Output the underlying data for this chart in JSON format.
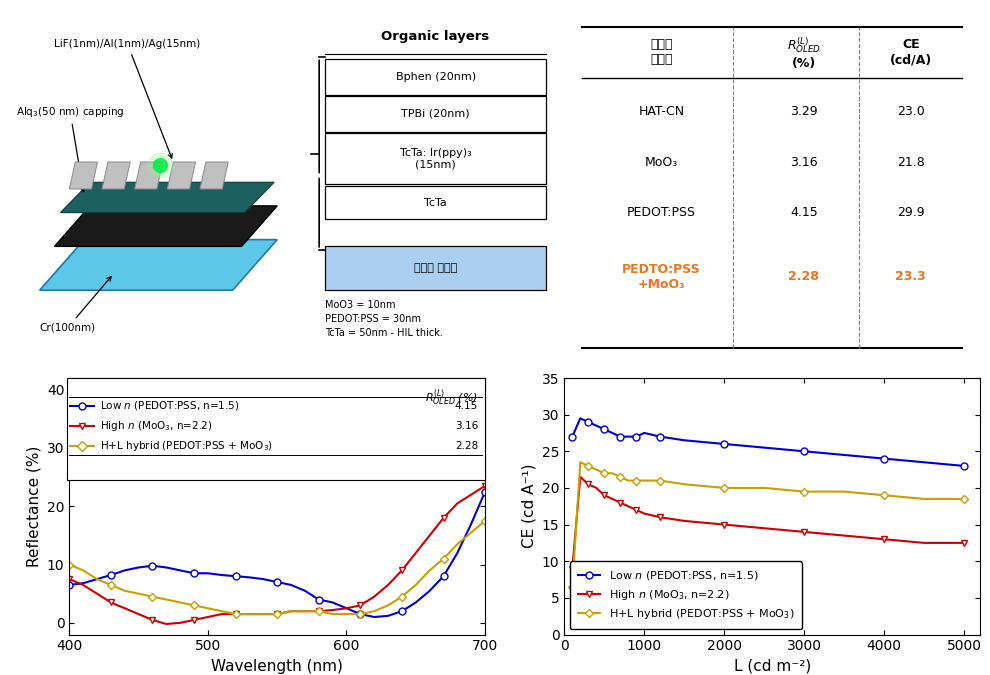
{
  "table": {
    "headers": [
      "반사율\n조절층",
      "R_OLED^(L)\n(%)",
      "CE\n(cd/A)"
    ],
    "rows": [
      [
        "HAT-CN",
        "3.29",
        "23.0"
      ],
      [
        "MoO₃",
        "3.16",
        "21.8"
      ],
      [
        "PEDOT:PSS",
        "4.15",
        "29.9"
      ],
      [
        "PEDTO:PSS\n+MoO₃",
        "2.28",
        "23.3"
      ]
    ],
    "last_row_color": "#E87722"
  },
  "organic_layers": {
    "layers": [
      "Bphen (20nm)",
      "TPBi (20nm)",
      "TcTa: Ir(ppy)₃\n(15nm)",
      "TcTa",
      "반사율 조절층"
    ],
    "note": "MoO3 = 10nm\nPEDOT:PSS = 30nm\nTcTa = 50nm - HIL thick."
  },
  "device_labels": {
    "top": "LiF(1nm)/Al(1nm)/Ag(15nm)",
    "bottom_left": "Alq₃(50 nm) capping",
    "bottom_right": "Cr(100nm)"
  },
  "reflectance": {
    "wavelength": [
      400,
      410,
      420,
      430,
      440,
      450,
      460,
      470,
      480,
      490,
      500,
      510,
      520,
      530,
      540,
      550,
      560,
      570,
      580,
      590,
      600,
      610,
      620,
      630,
      640,
      650,
      660,
      670,
      680,
      690,
      700
    ],
    "low_n": [
      6.5,
      6.8,
      7.5,
      8.2,
      9.0,
      9.5,
      9.8,
      9.5,
      9.0,
      8.5,
      8.5,
      8.2,
      8.0,
      7.8,
      7.5,
      7.0,
      6.5,
      5.5,
      4.0,
      3.5,
      2.5,
      1.5,
      1.0,
      1.2,
      2.0,
      3.5,
      5.5,
      8.0,
      12.0,
      17.0,
      22.5
    ],
    "high_n": [
      7.5,
      6.5,
      5.0,
      3.5,
      2.5,
      1.5,
      0.5,
      -0.2,
      0.0,
      0.5,
      1.0,
      1.5,
      1.5,
      1.5,
      1.5,
      1.5,
      2.0,
      2.0,
      2.0,
      2.2,
      2.5,
      3.0,
      4.5,
      6.5,
      9.0,
      12.0,
      15.0,
      18.0,
      20.5,
      22.0,
      23.5
    ],
    "hybrid": [
      10.0,
      9.0,
      7.5,
      6.5,
      5.5,
      5.0,
      4.5,
      4.0,
      3.5,
      3.0,
      2.5,
      2.0,
      1.5,
      1.5,
      1.5,
      1.5,
      2.0,
      2.0,
      2.0,
      1.5,
      1.5,
      1.5,
      2.0,
      3.0,
      4.5,
      6.5,
      9.0,
      11.0,
      13.5,
      15.5,
      17.5
    ],
    "colors": [
      "#0000CC",
      "#CC0000",
      "#C8A000"
    ],
    "ylim": [
      -2,
      42
    ],
    "yticks": [
      0,
      10,
      20,
      30,
      40
    ],
    "xlim": [
      400,
      700
    ],
    "xticks": [
      400,
      500,
      600,
      700
    ],
    "xlabel": "Wavelength (nm)",
    "ylabel": "Reflectance (%)",
    "legend_values": [
      "4.15",
      "3.16",
      "2.28"
    ],
    "legend_header": "R_OLED^(L) (%)"
  },
  "ce": {
    "luminance": [
      100,
      200,
      300,
      400,
      500,
      600,
      700,
      800,
      900,
      1000,
      1200,
      1500,
      2000,
      2500,
      3000,
      3500,
      4000,
      4500,
      5000
    ],
    "low_n": [
      27.0,
      29.5,
      29.0,
      28.5,
      28.0,
      27.5,
      27.0,
      27.0,
      27.0,
      27.5,
      27.0,
      26.5,
      26.0,
      25.5,
      25.0,
      24.5,
      24.0,
      23.5,
      23.0
    ],
    "high_n": [
      9.0,
      21.5,
      20.5,
      20.0,
      19.0,
      18.5,
      18.0,
      17.5,
      17.0,
      16.5,
      16.0,
      15.5,
      15.0,
      14.5,
      14.0,
      13.5,
      13.0,
      12.5,
      12.5
    ],
    "hybrid": [
      6.5,
      23.5,
      23.0,
      22.5,
      22.0,
      22.0,
      21.5,
      21.0,
      21.0,
      21.0,
      21.0,
      20.5,
      20.0,
      20.0,
      19.5,
      19.5,
      19.0,
      18.5,
      18.5
    ],
    "colors": [
      "#0000CC",
      "#CC0000",
      "#C8A000"
    ],
    "ylim": [
      0,
      35
    ],
    "yticks": [
      0,
      5,
      10,
      15,
      20,
      25,
      30,
      35
    ],
    "xlim": [
      0,
      5200
    ],
    "xticks": [
      0,
      1000,
      2000,
      3000,
      4000,
      5000
    ],
    "xlabel": "L (cd m⁻²)",
    "ylabel": "CE (cd A⁻¹)"
  },
  "background_color": "#FFFFFF"
}
